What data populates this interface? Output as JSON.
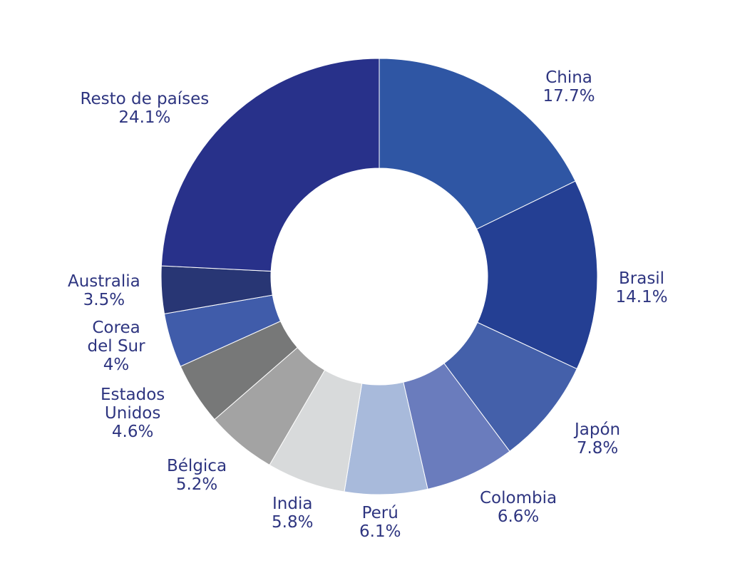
{
  "chart_data": {
    "type": "pie",
    "donut": true,
    "categories": [
      "China",
      "Brasil",
      "Japón",
      "Colombia",
      "Perú",
      "India",
      "Bélgica",
      "Estados Unidos",
      "Corea del Sur",
      "Australia",
      "Resto de países"
    ],
    "values": [
      17.7,
      14.1,
      7.8,
      6.6,
      6.1,
      5.8,
      5.2,
      4.6,
      4.0,
      3.5,
      24.1
    ],
    "value_labels": [
      "17.7%",
      "14.1%",
      "7.8%",
      "6.6%",
      "6.1%",
      "5.8%",
      "5.2%",
      "4.6%",
      "4%",
      "3.5%",
      "24.1%"
    ],
    "label_lines": [
      [
        "China"
      ],
      [
        "Brasil"
      ],
      [
        "Japón"
      ],
      [
        "Colombia"
      ],
      [
        "Perú"
      ],
      [
        "India"
      ],
      [
        "Bélgica"
      ],
      [
        "Estados",
        "Unidos"
      ],
      [
        "Corea",
        "del Sur"
      ],
      [
        "Australia"
      ],
      [
        "Resto de países"
      ]
    ],
    "colors": [
      "#2f56a4",
      "#243f93",
      "#4460aa",
      "#6a7cbd",
      "#a8badb",
      "#d8dadb",
      "#a3a3a3",
      "#777878",
      "#405caa",
      "#283674",
      "#28318a"
    ],
    "label_color": "#2e3580",
    "start": "12 o'clock",
    "direction": "clockwise",
    "title": "",
    "legend": "none"
  }
}
